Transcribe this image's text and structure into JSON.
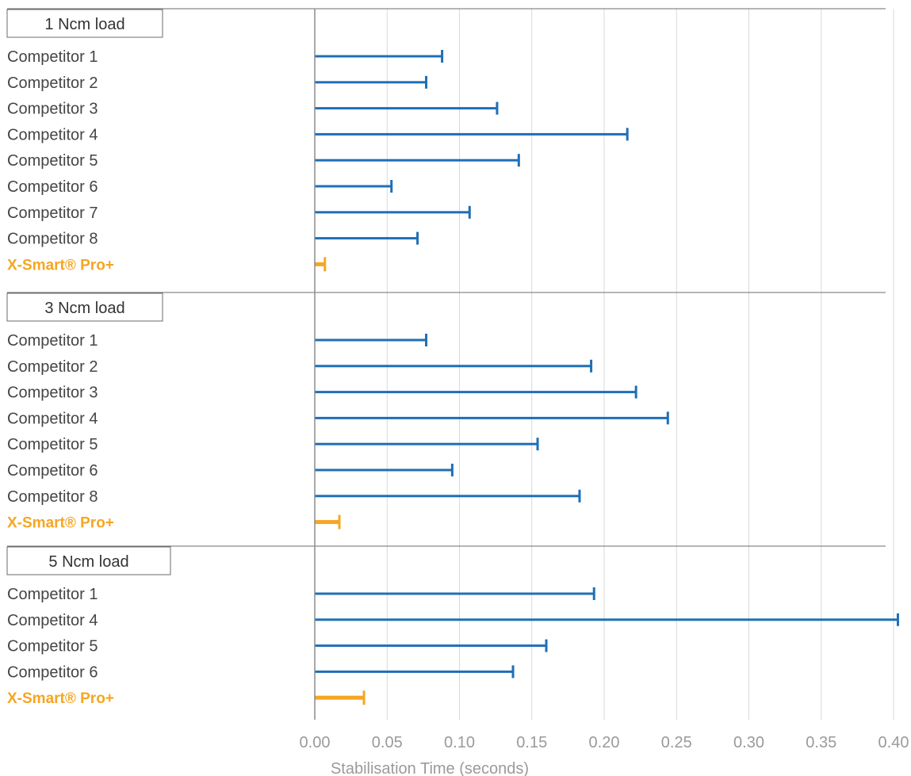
{
  "colors": {
    "bar": "#1f6fb6",
    "highlight": "#f5a623",
    "grid": "#d9d9d9",
    "axis": "#8c8c8c",
    "separator": "#6b6b6b"
  },
  "chart_data": {
    "type": "bar",
    "orientation": "horizontal",
    "style": "error-bar-whiskers",
    "title": "",
    "xlabel": "Stabilisation Time (seconds)",
    "ylabel": "",
    "xlim": [
      0,
      0.4
    ],
    "x_ticks": [
      "0.00",
      "0.05",
      "0.10",
      "0.15",
      "0.20",
      "0.25",
      "0.30",
      "0.35",
      "0.40"
    ],
    "grid": "vertical",
    "legend": "none",
    "groups": [
      {
        "title": "1 Ncm load",
        "categories": [
          "Competitor 1",
          "Competitor 2",
          "Competitor 3",
          "Competitor 4",
          "Competitor 5",
          "Competitor 6",
          "Competitor 7",
          "Competitor 8",
          "X-Smart® Pro+"
        ],
        "values": [
          0.088,
          0.077,
          0.126,
          0.216,
          0.141,
          0.053,
          0.107,
          0.071,
          0.007
        ],
        "highlight_index": 8
      },
      {
        "title": "3 Ncm load",
        "categories": [
          "Competitor 1",
          "Competitor 2",
          "Competitor 3",
          "Competitor 4",
          "Competitor 5",
          "Competitor 6",
          "Competitor 8",
          "X-Smart® Pro+"
        ],
        "values": [
          0.077,
          0.191,
          0.222,
          0.244,
          0.154,
          0.095,
          0.183,
          0.017
        ],
        "highlight_index": 7
      },
      {
        "title": "5 Ncm load",
        "categories": [
          "Competitor 1",
          "Competitor 4",
          "Competitor 5",
          "Competitor 6",
          "X-Smart® Pro+"
        ],
        "values": [
          0.193,
          0.403,
          0.16,
          0.137,
          0.034
        ],
        "highlight_index": 4
      }
    ]
  }
}
